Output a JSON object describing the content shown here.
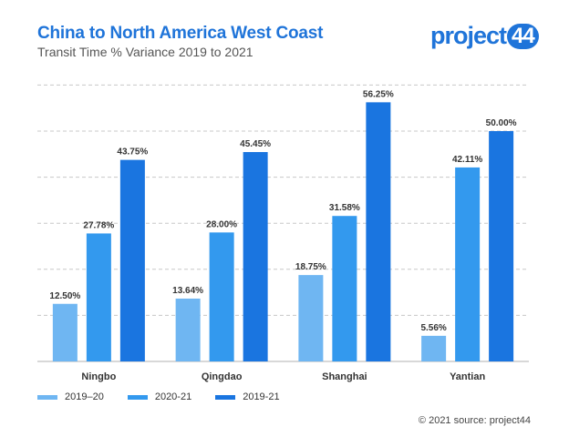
{
  "header": {
    "title": "China to North America West Coast",
    "subtitle": "Transit Time % Variance 2019 to 2021"
  },
  "logo": {
    "text": "project",
    "num": "44"
  },
  "footer": {
    "source": "© 2021 source: project44"
  },
  "colors": {
    "accent": "#1f74d9"
  },
  "chart_data": {
    "type": "bar",
    "title": "China to North America West Coast",
    "subtitle": "Transit Time % Variance 2019 to 2021",
    "categories": [
      "Ningbo",
      "Qingdao",
      "Shanghai",
      "Yantian"
    ],
    "series": [
      {
        "name": "2019–20",
        "color": "#6fb6f2",
        "values": [
          12.5,
          13.64,
          18.75,
          5.56
        ],
        "labels": [
          "12.50%",
          "13.64%",
          "18.75%",
          "5.56%"
        ]
      },
      {
        "name": "2020-21",
        "color": "#3399ee",
        "values": [
          27.78,
          28.0,
          31.58,
          42.11
        ],
        "labels": [
          "27.78%",
          "28.00%",
          "31.58%",
          "42.11%"
        ]
      },
      {
        "name": "2019-21",
        "color": "#1a75e0",
        "values": [
          43.75,
          45.45,
          56.25,
          50.0
        ],
        "labels": [
          "43.75%",
          "45.45%",
          "56.25%",
          "50.00%"
        ]
      }
    ],
    "ylim": [
      0,
      60
    ],
    "grid": true,
    "legend": "bottom-left"
  }
}
